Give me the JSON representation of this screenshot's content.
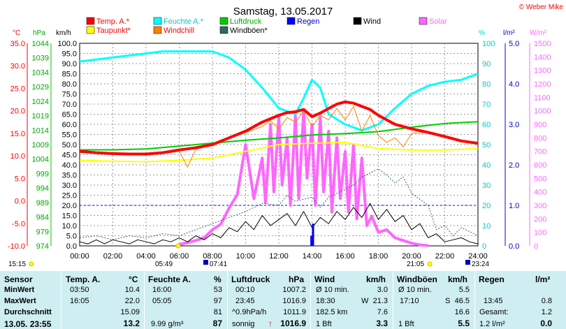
{
  "chart_data": {
    "type": "line",
    "title": "Samstag, 13.05.2017",
    "credit": "© Weber Mike",
    "legend": [
      {
        "label": "Temp. A.*",
        "color": "#ff0000"
      },
      {
        "label": "Taupunkt*",
        "color": "#ffff00"
      },
      {
        "label": "Feuchte A.*",
        "color": "#00ffff"
      },
      {
        "label": "Windchill",
        "color": "#ff8000"
      },
      {
        "label": "Luftdruck",
        "color": "#00cc00"
      },
      {
        "label": "Windböen*",
        "color": "#336666"
      },
      {
        "label": "Regen",
        "color": "#0000ff"
      },
      {
        "label": "Wind",
        "color": "#000000"
      },
      {
        "label": "Solar",
        "color": "#ff66ff"
      }
    ],
    "axis_units": {
      "temp": "°C",
      "press": "hPa",
      "wind": "km/h",
      "hum": "%",
      "rain": "l/m²",
      "solar": "W/m²"
    },
    "temp_ticks": [
      "35.0",
      "30.0",
      "25.0",
      "20.0",
      "15.0",
      "10.0",
      "5.0",
      "0.0",
      "-5.0",
      "-10.0"
    ],
    "press_ticks": [
      "1044",
      "1039",
      "1034",
      "1029",
      "1024",
      "1019",
      "1014",
      "1009",
      "1004",
      "999",
      "994",
      "989",
      "984",
      "979",
      "974"
    ],
    "wind_ticks": [
      "100.0",
      "95.0",
      "90.0",
      "85.0",
      "80.0",
      "75.0",
      "70.0",
      "65.0",
      "60.0",
      "55.0",
      "50.0",
      "45.0",
      "40.0",
      "35.0",
      "30.0",
      "25.0",
      "20.0",
      "15.0",
      "10.0",
      "5.0",
      "0.0"
    ],
    "hum_ticks": [
      "100",
      "90",
      "80",
      "70",
      "60",
      "50",
      "40",
      "30",
      "20",
      "10",
      "0"
    ],
    "rain_ticks": [
      "5.0",
      "4.0",
      "3.0",
      "2.0",
      "1.0",
      "0.0"
    ],
    "solar_ticks": [
      "1500",
      "1400",
      "1300",
      "1200",
      "1100",
      "1000",
      "900",
      "800",
      "700",
      "600",
      "500",
      "400",
      "300",
      "200",
      "100",
      "0"
    ],
    "x_ticks": [
      "00:00",
      "02:00",
      "04:00",
      "06:00",
      "08:00",
      "10:00",
      "12:00",
      "14:00",
      "16:00",
      "18:00",
      "20:00",
      "22:00",
      "24:00"
    ],
    "x_range_hours": [
      0,
      24
    ],
    "temp_range": [
      -10,
      35
    ],
    "hum_range": [
      0,
      100
    ],
    "wind_range": [
      0,
      100
    ],
    "rain_range": [
      0,
      5
    ],
    "solar_range": [
      0,
      1500
    ],
    "grid": true,
    "series": [
      {
        "name": "Temp. A.*",
        "axis": "temp",
        "points": [
          [
            0,
            11.0
          ],
          [
            1,
            10.7
          ],
          [
            2,
            10.5
          ],
          [
            3,
            10.4
          ],
          [
            4,
            10.4
          ],
          [
            5,
            10.7
          ],
          [
            6,
            11.3
          ],
          [
            7,
            11.8
          ],
          [
            8,
            12.5
          ],
          [
            9,
            14.0
          ],
          [
            10,
            15.5
          ],
          [
            11,
            17.5
          ],
          [
            12,
            19.0
          ],
          [
            12.5,
            19.6
          ],
          [
            13,
            19.8
          ],
          [
            13.5,
            20.3
          ],
          [
            14,
            18.7
          ],
          [
            14.5,
            19.5
          ],
          [
            15,
            20.5
          ],
          [
            15.5,
            21.5
          ],
          [
            16,
            22.0
          ],
          [
            16.5,
            21.7
          ],
          [
            17,
            21.0
          ],
          [
            17.5,
            20.3
          ],
          [
            18,
            19.0
          ],
          [
            19,
            17.0
          ],
          [
            20,
            16.0
          ],
          [
            21,
            15.2
          ],
          [
            22,
            14.3
          ],
          [
            23,
            13.3
          ],
          [
            24,
            12.8
          ]
        ]
      },
      {
        "name": "Feuchte A.*",
        "axis": "hum",
        "points": [
          [
            0,
            91
          ],
          [
            1,
            92
          ],
          [
            2,
            93
          ],
          [
            3,
            94
          ],
          [
            4,
            95
          ],
          [
            5,
            96
          ],
          [
            6,
            96
          ],
          [
            7,
            96
          ],
          [
            8,
            96
          ],
          [
            9,
            93
          ],
          [
            10,
            87
          ],
          [
            11,
            78
          ],
          [
            12,
            68
          ],
          [
            13,
            65
          ],
          [
            13.5,
            73
          ],
          [
            14,
            82
          ],
          [
            14.5,
            78
          ],
          [
            15,
            65
          ],
          [
            16,
            60
          ],
          [
            17,
            57
          ],
          [
            18,
            60
          ],
          [
            19,
            68
          ],
          [
            20,
            75
          ],
          [
            21,
            79
          ],
          [
            22,
            81
          ],
          [
            23,
            82
          ],
          [
            24,
            85
          ]
        ]
      },
      {
        "name": "Luftdruck",
        "axis": "press",
        "points": [
          [
            0,
            1007.2
          ],
          [
            2,
            1007.2
          ],
          [
            4,
            1007.5
          ],
          [
            6,
            1008.5
          ],
          [
            8,
            1009.5
          ],
          [
            10,
            1010.5
          ],
          [
            12,
            1011.3
          ],
          [
            14,
            1012.3
          ],
          [
            16,
            1012.8
          ],
          [
            18,
            1013.5
          ],
          [
            20,
            1015.0
          ],
          [
            22,
            1016.3
          ],
          [
            24,
            1016.9
          ]
        ]
      },
      {
        "name": "Taupunkt*",
        "axis": "temp",
        "points": [
          [
            0,
            9.0
          ],
          [
            2,
            8.8
          ],
          [
            4,
            8.7
          ],
          [
            6,
            9.0
          ],
          [
            8,
            9.5
          ],
          [
            10,
            11.0
          ],
          [
            12,
            12.5
          ],
          [
            14,
            12.8
          ],
          [
            16,
            13.0
          ],
          [
            18,
            11.6
          ],
          [
            20,
            11.3
          ],
          [
            22,
            11.3
          ],
          [
            24,
            11.6
          ]
        ]
      },
      {
        "name": "Windchill",
        "axis": "temp",
        "points": [
          [
            0,
            10.9
          ],
          [
            2,
            10.6
          ],
          [
            4,
            10.4
          ],
          [
            6,
            11.0
          ],
          [
            6.5,
            7.5
          ],
          [
            7,
            11.5
          ],
          [
            8,
            12.3
          ],
          [
            9,
            13.8
          ],
          [
            10,
            15.2
          ],
          [
            11,
            16.5
          ],
          [
            11.5,
            17.8
          ],
          [
            12,
            16.0
          ],
          [
            12.5,
            18.5
          ],
          [
            13,
            17.5
          ],
          [
            13.5,
            20.0
          ],
          [
            14,
            16.5
          ],
          [
            14.5,
            19.0
          ],
          [
            15,
            18.0
          ],
          [
            15.5,
            20.5
          ],
          [
            16,
            18.0
          ],
          [
            16.5,
            21.0
          ],
          [
            17,
            15.5
          ],
          [
            17.5,
            19.0
          ],
          [
            18,
            14.5
          ],
          [
            18.5,
            13.0
          ],
          [
            19,
            14.0
          ],
          [
            19.5,
            12.0
          ],
          [
            20,
            15.0
          ],
          [
            21,
            15.2
          ]
        ]
      },
      {
        "name": "Windböen*",
        "axis": "wind",
        "points": [
          [
            0,
            4
          ],
          [
            1,
            5
          ],
          [
            2,
            3
          ],
          [
            3,
            5
          ],
          [
            4,
            4
          ],
          [
            5,
            6
          ],
          [
            6,
            5
          ],
          [
            7,
            8
          ],
          [
            8,
            11
          ],
          [
            9,
            14
          ],
          [
            10,
            17
          ],
          [
            11,
            21
          ],
          [
            12,
            20
          ],
          [
            12.5,
            25
          ],
          [
            13,
            22
          ],
          [
            14,
            24
          ],
          [
            14.5,
            19
          ],
          [
            15,
            24
          ],
          [
            16,
            28
          ],
          [
            16.5,
            30
          ],
          [
            17,
            34
          ],
          [
            18,
            38
          ],
          [
            18.5,
            35
          ],
          [
            19,
            31
          ],
          [
            19.5,
            34
          ],
          [
            20,
            26
          ],
          [
            21,
            20
          ],
          [
            21.5,
            8
          ],
          [
            22,
            10
          ],
          [
            22.5,
            5
          ],
          [
            23,
            9
          ],
          [
            24,
            5
          ]
        ]
      },
      {
        "name": "Wind",
        "axis": "wind",
        "points": [
          [
            0,
            2
          ],
          [
            0.5,
            1
          ],
          [
            1,
            3
          ],
          [
            1.5,
            1
          ],
          [
            2,
            3
          ],
          [
            2.5,
            2
          ],
          [
            3,
            1
          ],
          [
            3.5,
            3
          ],
          [
            4,
            2
          ],
          [
            4.5,
            1
          ],
          [
            5,
            3
          ],
          [
            5.5,
            2
          ],
          [
            6,
            4
          ],
          [
            6.5,
            2
          ],
          [
            7,
            5
          ],
          [
            7.5,
            3
          ],
          [
            8,
            6
          ],
          [
            8.5,
            4
          ],
          [
            9,
            9
          ],
          [
            9.5,
            7
          ],
          [
            10,
            12
          ],
          [
            10.5,
            8
          ],
          [
            11,
            15
          ],
          [
            11.5,
            10
          ],
          [
            12,
            13
          ],
          [
            12.5,
            16
          ],
          [
            13,
            10
          ],
          [
            13.5,
            17
          ],
          [
            14,
            9
          ],
          [
            14.5,
            14
          ],
          [
            15,
            11
          ],
          [
            15.5,
            17
          ],
          [
            16,
            13
          ],
          [
            16.5,
            19
          ],
          [
            17,
            14
          ],
          [
            17.5,
            21
          ],
          [
            18,
            13
          ],
          [
            18.5,
            18
          ],
          [
            19,
            12
          ],
          [
            19.5,
            15
          ],
          [
            20,
            8
          ],
          [
            20.5,
            11
          ],
          [
            21,
            4
          ],
          [
            21.5,
            6
          ],
          [
            22,
            2
          ],
          [
            22.5,
            3
          ],
          [
            23,
            4
          ],
          [
            23.5,
            2
          ],
          [
            24,
            1
          ]
        ]
      },
      {
        "name": "Solar",
        "axis": "solar",
        "points": [
          [
            6,
            10
          ],
          [
            7,
            40
          ],
          [
            7.5,
            60
          ],
          [
            8,
            120
          ],
          [
            8.5,
            160
          ],
          [
            9,
            280
          ],
          [
            9.5,
            380
          ],
          [
            10,
            750
          ],
          [
            10.5,
            350
          ],
          [
            11,
            650
          ],
          [
            11.2,
            320
          ],
          [
            11.5,
            900
          ],
          [
            11.7,
            400
          ],
          [
            12,
            950
          ],
          [
            12.2,
            450
          ],
          [
            12.5,
            800
          ],
          [
            12.7,
            300
          ],
          [
            13,
            960
          ],
          [
            13.2,
            350
          ],
          [
            13.5,
            1000
          ],
          [
            13.7,
            500
          ],
          [
            14,
            900
          ],
          [
            14.2,
            300
          ],
          [
            14.5,
            950
          ],
          [
            14.7,
            400
          ],
          [
            15,
            850
          ],
          [
            15.2,
            250
          ],
          [
            15.5,
            800
          ],
          [
            15.7,
            350
          ],
          [
            16,
            700
          ],
          [
            16.2,
            250
          ],
          [
            16.5,
            750
          ],
          [
            16.7,
            200
          ],
          [
            17,
            650
          ],
          [
            17.3,
            150
          ],
          [
            17.6,
            220
          ],
          [
            18,
            100
          ],
          [
            18.5,
            120
          ],
          [
            19,
            60
          ],
          [
            19.5,
            40
          ],
          [
            20,
            20
          ],
          [
            20.5,
            8
          ],
          [
            21,
            2
          ]
        ]
      },
      {
        "name": "Regen",
        "axis": "rain",
        "bars": [
          [
            13.9,
            0.25
          ],
          [
            14.0,
            0.55
          ]
        ],
        "baseline_value": 1.0
      }
    ]
  },
  "time_markers": {
    "left_time": "15:15",
    "sunrise": "05:49",
    "moonrise": "07:41",
    "sunset": "21:05",
    "moonset": "23:24"
  },
  "summary": {
    "sensor": {
      "head": "Sensor",
      "rows": [
        "MinWert",
        "MaxWert",
        "Durchschnitt"
      ],
      "date": "13.05. 23:55"
    },
    "temp": {
      "head": "Temp. A.",
      "unit": "°C",
      "min_time": "03:50",
      "min": "10.4",
      "max_time": "16:05",
      "max": "22.0",
      "avg": "15.09",
      "cur": "13.2"
    },
    "hum": {
      "head": "Feuchte A.",
      "unit": "%",
      "min_time": "16:00",
      "min": "53",
      "max_time": "05:05",
      "max": "97",
      "avg": "81",
      "abs": "9.99 g/m³",
      "cur": "87"
    },
    "press": {
      "head": "Luftdruck",
      "unit": "hPa",
      "min_time": "00:10",
      "min": "1007.2",
      "max_time": "23:45",
      "max": "1016.9",
      "trend": "^0.9hPa/h",
      "avg": "1011.9",
      "weather": "sonnig",
      "cur_arrow": "↑",
      "cur": "1016.9"
    },
    "wind": {
      "head": "Wind",
      "unit": "km/h",
      "r1_label": "Ø 10 min.",
      "r1": "3.0",
      "r2_time": "18:30",
      "r2_dir": "W",
      "r2": "21.3",
      "r3_label": "182.5 km",
      "r3": "7.6",
      "bft": "1 Bft",
      "cur": "3.3"
    },
    "gust": {
      "head": "Windböen",
      "unit": "km/h",
      "r1_label": "Ø 10 min.",
      "r1": "5.5",
      "r2_time": "17:10",
      "r2_dir": "S",
      "r2": "46.5",
      "r3": "16.6",
      "bft": "1 Bft",
      "cur": "5.5"
    },
    "rain": {
      "head": "Regen",
      "unit": "l/m²",
      "r2_time": "13:45",
      "r2": "0.8",
      "r3_label": "Gesamt:",
      "r3": "1.2",
      "r4_label": "1.2 l/m²",
      "cur": "0.0"
    }
  }
}
